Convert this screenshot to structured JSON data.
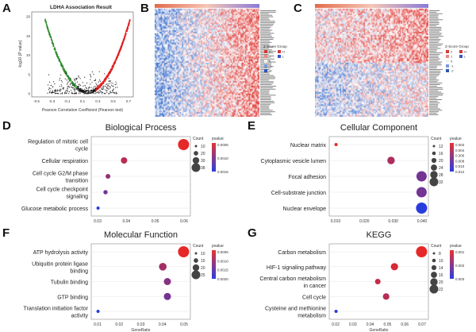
{
  "panel_a": {
    "letter": "A",
    "title": "LDHA Association Result",
    "xlabel": "Pearson Correlation Coefficient (Pearson test)",
    "ylabel": "-log10 (P value)",
    "xticks": [
      "-0.5",
      "-0.3",
      "-0.1",
      "0.1",
      "0.3",
      "0.5",
      "0.7"
    ],
    "yticks": [
      "0",
      "5",
      "10",
      "15",
      "20"
    ]
  },
  "panel_b": {
    "letter": "B",
    "legend_title": "Z-Score  Group",
    "legend_items": [
      "2",
      "1",
      "0",
      "-1",
      "-2"
    ],
    "group_items": [
      "H",
      "L"
    ],
    "colors": {
      "high": "#e8453c",
      "mid": "#ffffff",
      "low": "#2f66c6"
    }
  },
  "panel_c": {
    "letter": "C",
    "legend_title": "Z-Score  Group",
    "legend_items": [
      "2",
      "1",
      "0",
      "-1",
      "-2"
    ],
    "group_items": [
      "H",
      "L"
    ]
  },
  "chart_data": [
    {
      "id": "D",
      "type": "scatter",
      "title": "Biological Process",
      "categories": [
        "Regulation of mitotic cell cycle",
        "Cellular respiration",
        "Cell cycle G2/M phase transition",
        "Cell cycle checkpoint signaling",
        "Glucose metabolic process"
      ],
      "category_lines": [
        [
          "Regulation of mitotic cell",
          "cycle"
        ],
        [
          "Cellular respiration"
        ],
        [
          "Cell cycle G2/M phase",
          "transition"
        ],
        [
          "Cell cycle checkpoint",
          "signaling"
        ],
        [
          "Glucose metabolic process"
        ]
      ],
      "x": [
        0.079,
        0.031,
        0.018,
        0.016,
        0.01
      ],
      "count": [
        38,
        20,
        14,
        12,
        8
      ],
      "pvalue": [
        0.0002,
        0.0006,
        0.0009,
        0.0012,
        0.0018
      ],
      "xticks": [
        "0.03",
        "0.04",
        "0.05",
        "0.06"
      ],
      "legend_count": [
        "10",
        "20",
        "30",
        "38"
      ],
      "legend_p": [
        "0.0005",
        "0.0010",
        "0.0015"
      ],
      "legend_count_title": "Count",
      "legend_p_title": "pvalue"
    },
    {
      "id": "E",
      "type": "scatter",
      "title": "Cellular Component",
      "categories": [
        "Nuclear matrix",
        "Cytoplasmic vesicle lumen",
        "Focal adhesion",
        "Cell-substrate junction",
        "Nuclear envelope"
      ],
      "category_lines": [
        [
          "Nuclear matrix"
        ],
        [
          "Cytoplasmic vesicle lumen"
        ],
        [
          "Focal adhesion"
        ],
        [
          "Cell-substrate junction"
        ],
        [
          "Nuclear envelope"
        ]
      ],
      "x": [
        0.012,
        0.03,
        0.04,
        0.04,
        0.04
      ],
      "count": [
        10,
        22,
        30,
        30,
        32
      ],
      "pvalue": [
        0.002,
        0.005,
        0.008,
        0.008,
        0.012
      ],
      "xticks": [
        "0.010",
        "0.020",
        "0.030",
        "0.040"
      ],
      "legend_count": [
        "12",
        "16",
        "20",
        "24",
        "28",
        "32"
      ],
      "legend_p": [
        "0.002",
        "0.004",
        "0.006",
        "0.008",
        "0.010",
        "0.012"
      ],
      "legend_count_title": "Count",
      "legend_p_title": "pvalue"
    },
    {
      "id": "F",
      "type": "scatter",
      "title": "Molecular Function",
      "categories": [
        "ATP hydrolysis activity",
        "Ubiquitin protein ligase binding",
        "Tubulin binding",
        "GTP binding",
        "Translation initiation factor activity"
      ],
      "category_lines": [
        [
          "ATP hydrolysis activity"
        ],
        [
          "Ubiquitin protein ligase",
          "binding"
        ],
        [
          "Tubulin binding"
        ],
        [
          "GTP binding"
        ],
        [
          "Translation initiation factor",
          "activity"
        ]
      ],
      "x": [
        0.048,
        0.039,
        0.041,
        0.041,
        0.011
      ],
      "count": [
        25,
        16,
        15,
        15,
        5
      ],
      "pvalue": [
        0.0002,
        0.0009,
        0.0012,
        0.0014,
        0.0022
      ],
      "xticks": [
        "0.01",
        "0.02",
        "0.03",
        "0.04",
        "0.05"
      ],
      "xlabel": "GeneRatio",
      "legend_count": [
        "10",
        "15",
        "20",
        "25"
      ],
      "legend_p": [
        "0.0005",
        "0.0010",
        "0.0015",
        "0.0020"
      ],
      "legend_count_title": "Count",
      "legend_p_title": "pvalue"
    },
    {
      "id": "G",
      "type": "scatter",
      "title": "KEGG",
      "categories": [
        "Carbon metabolism",
        "HIF-1 signaling pathway",
        "Central carbon metabolism in cancer",
        "Cell cycle",
        "Cysteine and methionine metabolism"
      ],
      "category_lines": [
        [
          "Carbon metabolism"
        ],
        [
          "HIF-1 signaling pathway"
        ],
        [
          "Central carbon metabolism",
          "in cancer"
        ],
        [
          "Cell cycle"
        ],
        [
          "Cysteine and methionine",
          "metabolism"
        ]
      ],
      "x": [
        0.07,
        0.057,
        0.049,
        0.053,
        0.029
      ],
      "count": [
        22,
        14,
        10,
        12,
        5
      ],
      "pvalue": [
        0.001,
        0.0012,
        0.0015,
        0.0017,
        0.0038
      ],
      "xticks": [
        "0.02",
        "0.03",
        "0.04",
        "0.05",
        "0.06",
        "0.07"
      ],
      "xlabel": "GeneRatio",
      "legend_count": [
        "8",
        "10",
        "14",
        "16",
        "20",
        "22"
      ],
      "legend_p": [
        "0.001",
        "0.002",
        "0.003"
      ],
      "legend_count_title": "Count",
      "legend_p_title": "pvalue"
    }
  ]
}
